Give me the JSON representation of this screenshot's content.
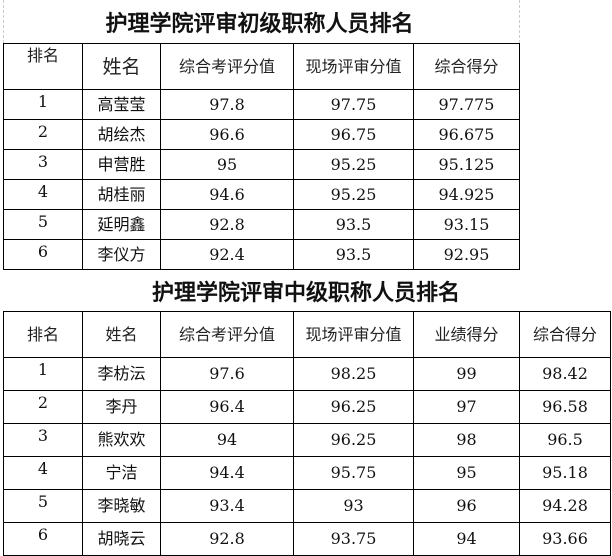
{
  "table1": {
    "title": "护理学院评审初级职称人员排名",
    "headers": [
      "排名",
      "姓名",
      "综合考评分值",
      "现场评审分值",
      "综合得分"
    ],
    "rows": [
      [
        "1",
        "高莹莹",
        "97.8",
        "97.75",
        "97.775"
      ],
      [
        "2",
        "胡绘杰",
        "96.6",
        "96.75",
        "96.675"
      ],
      [
        "3",
        "申营胜",
        "95",
        "95.25",
        "95.125"
      ],
      [
        "4",
        "胡桂丽",
        "94.6",
        "95.25",
        "94.925"
      ],
      [
        "5",
        "延明鑫",
        "92.8",
        "93.5",
        "93.15"
      ],
      [
        "6",
        "李仪方",
        "92.4",
        "93.5",
        "92.95"
      ]
    ]
  },
  "table2": {
    "title": "护理学院评审中级职称人员排名",
    "headers": [
      "排名",
      "姓名",
      "综合考评分值",
      "现场评审分值",
      "业绩得分",
      "综合得分"
    ],
    "rows": [
      [
        "1",
        "李枋沄",
        "97.6",
        "98.25",
        "99",
        "98.42"
      ],
      [
        "2",
        "李丹",
        "96.4",
        "96.25",
        "97",
        "96.58"
      ],
      [
        "3",
        "熊欢欢",
        "94",
        "96.25",
        "98",
        "96.5"
      ],
      [
        "4",
        "宁洁",
        "94.4",
        "95.75",
        "95",
        "95.18"
      ],
      [
        "5",
        "李晓敏",
        "93.4",
        "93",
        "96",
        "94.28"
      ],
      [
        "6",
        "胡晓云",
        "92.8",
        "93.75",
        "94",
        "93.66"
      ]
    ]
  }
}
